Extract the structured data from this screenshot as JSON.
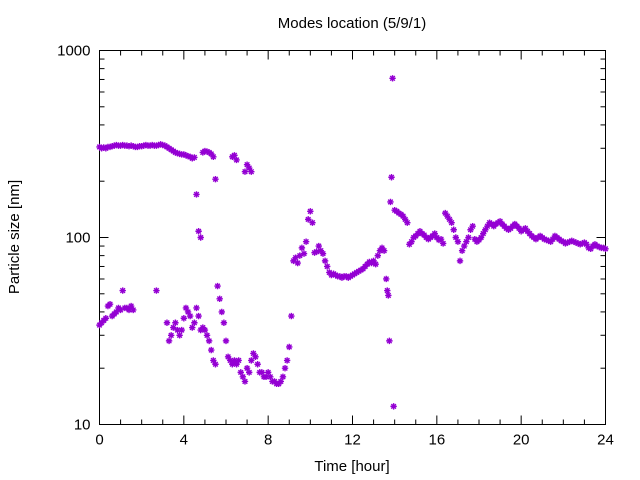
{
  "chart_data": {
    "type": "scatter",
    "title": "Modes location (5/9/1)",
    "xlabel": "Time [hour]",
    "ylabel": "Particle size [nm]",
    "xlim": [
      0,
      24
    ],
    "ylim": [
      10,
      1000
    ],
    "yscale": "log",
    "xticks": [
      0,
      4,
      8,
      12,
      16,
      20,
      24
    ],
    "yticks": [
      10,
      100,
      1000
    ],
    "grid": false,
    "marker": "asterisk",
    "color": "#9400d3",
    "series": [
      {
        "points": [
          [
            0.0,
            305
          ],
          [
            0.1,
            300
          ],
          [
            0.2,
            303
          ],
          [
            0.3,
            300
          ],
          [
            0.4,
            305
          ],
          [
            0.5,
            305
          ],
          [
            0.6,
            308
          ],
          [
            0.7,
            310
          ],
          [
            0.8,
            312
          ],
          [
            0.9,
            310
          ],
          [
            1.0,
            310
          ],
          [
            1.1,
            312
          ],
          [
            1.2,
            310
          ],
          [
            1.3,
            310
          ],
          [
            1.4,
            308
          ],
          [
            1.5,
            310
          ],
          [
            1.6,
            308
          ],
          [
            1.7,
            305
          ],
          [
            1.8,
            305
          ],
          [
            1.9,
            308
          ],
          [
            2.0,
            308
          ],
          [
            2.1,
            310
          ],
          [
            2.2,
            312
          ],
          [
            2.3,
            310
          ],
          [
            2.4,
            310
          ],
          [
            2.5,
            312
          ],
          [
            2.6,
            310
          ],
          [
            2.7,
            310
          ],
          [
            2.8,
            312
          ],
          [
            2.9,
            315
          ],
          [
            3.0,
            312
          ],
          [
            3.1,
            310
          ],
          [
            3.2,
            305
          ],
          [
            3.3,
            300
          ],
          [
            3.4,
            295
          ],
          [
            3.5,
            290
          ],
          [
            3.6,
            285
          ],
          [
            3.7,
            282
          ],
          [
            3.8,
            280
          ],
          [
            3.9,
            278
          ],
          [
            4.0,
            278
          ],
          [
            4.1,
            275
          ],
          [
            4.2,
            272
          ],
          [
            4.3,
            270
          ],
          [
            4.4,
            265
          ],
          [
            4.5,
            268
          ],
          [
            4.6,
            170
          ],
          [
            4.7,
            108
          ],
          [
            4.8,
            100
          ],
          [
            4.9,
            285
          ],
          [
            5.0,
            290
          ],
          [
            5.1,
            288
          ],
          [
            5.2,
            285
          ],
          [
            5.3,
            280
          ],
          [
            5.4,
            270
          ],
          [
            5.5,
            205
          ],
          [
            6.3,
            270
          ],
          [
            6.4,
            275
          ],
          [
            6.5,
            260
          ],
          [
            6.9,
            225
          ],
          [
            7.0,
            245
          ],
          [
            7.1,
            235
          ],
          [
            7.2,
            225
          ]
        ]
      },
      {
        "points": [
          [
            0.0,
            34
          ],
          [
            0.1,
            35
          ],
          [
            0.2,
            36
          ],
          [
            0.3,
            37
          ],
          [
            0.4,
            43
          ],
          [
            0.5,
            44
          ],
          [
            0.6,
            38
          ],
          [
            0.7,
            39
          ],
          [
            0.8,
            40
          ],
          [
            0.9,
            42
          ],
          [
            1.0,
            41
          ],
          [
            1.1,
            52
          ],
          [
            1.2,
            42
          ],
          [
            1.3,
            42
          ],
          [
            1.4,
            41
          ],
          [
            1.5,
            43
          ],
          [
            1.6,
            41
          ],
          [
            2.7,
            52
          ],
          [
            3.2,
            35
          ],
          [
            3.3,
            28
          ],
          [
            3.4,
            30
          ],
          [
            3.5,
            33
          ],
          [
            3.6,
            35
          ],
          [
            3.7,
            32
          ],
          [
            3.8,
            30
          ],
          [
            3.9,
            32
          ],
          [
            4.0,
            37
          ],
          [
            4.1,
            42
          ],
          [
            4.2,
            40
          ],
          [
            4.3,
            38
          ],
          [
            4.4,
            33
          ],
          [
            4.5,
            35
          ],
          [
            4.6,
            42
          ],
          [
            4.7,
            38
          ],
          [
            4.8,
            32
          ],
          [
            4.9,
            33
          ],
          [
            5.0,
            32
          ],
          [
            5.1,
            30
          ],
          [
            5.2,
            28
          ],
          [
            5.3,
            25
          ],
          [
            5.4,
            22
          ],
          [
            5.5,
            21
          ],
          [
            5.6,
            55
          ],
          [
            5.7,
            47
          ],
          [
            5.8,
            40
          ],
          [
            5.9,
            35
          ],
          [
            6.0,
            28
          ],
          [
            6.1,
            23
          ],
          [
            6.2,
            22
          ],
          [
            6.3,
            21
          ],
          [
            6.4,
            22
          ],
          [
            6.5,
            21
          ],
          [
            6.6,
            22
          ],
          [
            6.7,
            19
          ],
          [
            6.8,
            18
          ],
          [
            6.9,
            17
          ],
          [
            7.0,
            20
          ],
          [
            7.1,
            19
          ],
          [
            7.2,
            22
          ],
          [
            7.3,
            24
          ],
          [
            7.4,
            23
          ],
          [
            7.5,
            21
          ],
          [
            7.6,
            19
          ],
          [
            7.7,
            19
          ],
          [
            7.8,
            18
          ],
          [
            7.9,
            18
          ],
          [
            8.0,
            19
          ],
          [
            8.1,
            18
          ],
          [
            8.2,
            17
          ],
          [
            8.3,
            17
          ],
          [
            8.4,
            16.5
          ],
          [
            8.5,
            16.5
          ],
          [
            8.6,
            17
          ],
          [
            8.7,
            18
          ],
          [
            8.8,
            20
          ],
          [
            8.9,
            22
          ],
          [
            9.0,
            26
          ],
          [
            9.1,
            38
          ],
          [
            9.2,
            75
          ],
          [
            9.3,
            78
          ],
          [
            9.4,
            73
          ],
          [
            9.5,
            80
          ],
          [
            9.6,
            88
          ],
          [
            9.7,
            82
          ],
          [
            9.8,
            95
          ],
          [
            9.9,
            125
          ],
          [
            10.0,
            138
          ],
          [
            10.1,
            120
          ],
          [
            10.2,
            83
          ],
          [
            10.3,
            84
          ],
          [
            10.4,
            90
          ],
          [
            10.5,
            85
          ],
          [
            10.6,
            82
          ],
          [
            10.7,
            75
          ],
          [
            10.8,
            70
          ],
          [
            10.9,
            65
          ],
          [
            11.0,
            63
          ],
          [
            11.1,
            64
          ],
          [
            11.2,
            63
          ],
          [
            11.3,
            62
          ],
          [
            11.4,
            62
          ],
          [
            11.5,
            61
          ],
          [
            11.6,
            62
          ],
          [
            11.7,
            62
          ],
          [
            11.8,
            61
          ],
          [
            11.9,
            62
          ],
          [
            12.0,
            63
          ],
          [
            12.1,
            64
          ],
          [
            12.2,
            65
          ],
          [
            12.3,
            66
          ],
          [
            12.4,
            67
          ],
          [
            12.5,
            68
          ],
          [
            12.6,
            70
          ],
          [
            12.7,
            72
          ],
          [
            12.8,
            74
          ],
          [
            12.9,
            73
          ],
          [
            13.0,
            75
          ],
          [
            13.1,
            72
          ],
          [
            13.2,
            80
          ],
          [
            13.3,
            85
          ],
          [
            13.4,
            88
          ],
          [
            13.5,
            85
          ],
          [
            13.6,
            60
          ],
          [
            13.65,
            52
          ],
          [
            13.7,
            49
          ],
          [
            13.75,
            28
          ],
          [
            13.8,
            155
          ],
          [
            13.85,
            210
          ],
          [
            13.9,
            710
          ],
          [
            13.95,
            12.5
          ],
          [
            14.0,
            140
          ],
          [
            14.1,
            138
          ],
          [
            14.2,
            135
          ],
          [
            14.3,
            133
          ],
          [
            14.4,
            130
          ],
          [
            14.5,
            125
          ],
          [
            14.6,
            120
          ],
          [
            14.7,
            92
          ],
          [
            14.8,
            95
          ],
          [
            14.9,
            100
          ],
          [
            15.0,
            102
          ],
          [
            15.1,
            105
          ],
          [
            15.2,
            108
          ],
          [
            15.3,
            105
          ],
          [
            15.4,
            103
          ],
          [
            15.5,
            100
          ],
          [
            15.6,
            98
          ],
          [
            15.7,
            100
          ],
          [
            15.8,
            102
          ],
          [
            15.9,
            105
          ],
          [
            16.0,
            100
          ],
          [
            16.1,
            97
          ],
          [
            16.2,
            98
          ],
          [
            16.3,
            93
          ],
          [
            16.4,
            135
          ],
          [
            16.5,
            130
          ],
          [
            16.6,
            125
          ],
          [
            16.7,
            120
          ],
          [
            16.8,
            110
          ],
          [
            16.9,
            100
          ],
          [
            17.0,
            95
          ],
          [
            17.1,
            75
          ],
          [
            17.2,
            85
          ],
          [
            17.3,
            90
          ],
          [
            17.4,
            95
          ],
          [
            17.5,
            100
          ],
          [
            17.6,
            110
          ],
          [
            17.7,
            115
          ],
          [
            17.8,
            98
          ],
          [
            17.9,
            95
          ],
          [
            18.0,
            97
          ],
          [
            18.1,
            100
          ],
          [
            18.2,
            105
          ],
          [
            18.3,
            110
          ],
          [
            18.4,
            115
          ],
          [
            18.5,
            120
          ],
          [
            18.6,
            118
          ],
          [
            18.7,
            115
          ],
          [
            18.8,
            118
          ],
          [
            18.9,
            120
          ],
          [
            19.0,
            122
          ],
          [
            19.1,
            118
          ],
          [
            19.2,
            115
          ],
          [
            19.3,
            112
          ],
          [
            19.4,
            110
          ],
          [
            19.5,
            112
          ],
          [
            19.6,
            115
          ],
          [
            19.7,
            118
          ],
          [
            19.8,
            115
          ],
          [
            19.9,
            112
          ],
          [
            20.0,
            108
          ],
          [
            20.1,
            110
          ],
          [
            20.2,
            112
          ],
          [
            20.3,
            108
          ],
          [
            20.4,
            105
          ],
          [
            20.5,
            102
          ],
          [
            20.6,
            100
          ],
          [
            20.7,
            98
          ],
          [
            20.8,
            100
          ],
          [
            20.9,
            102
          ],
          [
            21.0,
            100
          ],
          [
            21.1,
            98
          ],
          [
            21.2,
            97
          ],
          [
            21.3,
            96
          ],
          [
            21.4,
            95
          ],
          [
            21.5,
            98
          ],
          [
            21.6,
            102
          ],
          [
            21.7,
            100
          ],
          [
            21.8,
            98
          ],
          [
            21.9,
            96
          ],
          [
            22.0,
            95
          ],
          [
            22.1,
            93
          ],
          [
            22.2,
            94
          ],
          [
            22.3,
            95
          ],
          [
            22.4,
            96
          ],
          [
            22.5,
            95
          ],
          [
            22.6,
            94
          ],
          [
            22.7,
            93
          ],
          [
            22.8,
            92
          ],
          [
            22.9,
            93
          ],
          [
            23.0,
            94
          ],
          [
            23.1,
            92
          ],
          [
            23.2,
            88
          ],
          [
            23.3,
            87
          ],
          [
            23.4,
            90
          ],
          [
            23.5,
            92
          ],
          [
            23.6,
            90
          ],
          [
            23.7,
            89
          ],
          [
            23.8,
            88
          ],
          [
            23.9,
            88
          ],
          [
            24.0,
            87
          ]
        ]
      }
    ]
  }
}
